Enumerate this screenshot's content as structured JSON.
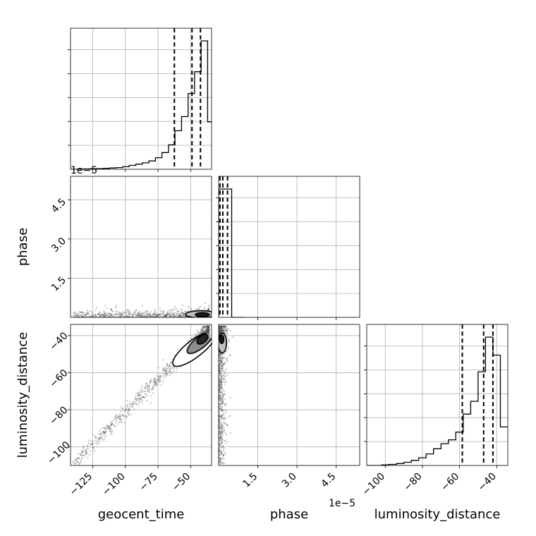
{
  "chart_data": {
    "type": "corner",
    "parameters": [
      "geocent_time",
      "phase",
      "luminosity_distance"
    ],
    "axis_labels": {
      "geocent_time": "geocent_time",
      "phase": "phase",
      "luminosity_distance": "luminosity_distance"
    },
    "offset_texts": {
      "phase_y": "1e−5",
      "phase_x": "1e−5"
    },
    "ranges": {
      "geocent_time": [
        -142,
        -34
      ],
      "phase": [
        0,
        5.4e-05
      ],
      "luminosity_distance": [
        -110,
        -34
      ]
    },
    "ticks": {
      "geocent_time": [
        {
          "value": -125,
          "label": "−125"
        },
        {
          "value": -100,
          "label": "−100"
        },
        {
          "value": -75,
          "label": "−75"
        },
        {
          "value": -50,
          "label": "−50"
        }
      ],
      "phase": [
        {
          "value": 1.5e-05,
          "label": "1.5"
        },
        {
          "value": 3e-05,
          "label": "3.0"
        },
        {
          "value": 4.5e-05,
          "label": "4.5"
        }
      ],
      "luminosity_distance": [
        {
          "value": -100,
          "label": "−100"
        },
        {
          "value": -80,
          "label": "−80"
        },
        {
          "value": -60,
          "label": "−60"
        },
        {
          "value": -40,
          "label": "−40"
        }
      ]
    },
    "histograms": {
      "geocent_time": {
        "edges": [
          -142,
          -137,
          -132,
          -127,
          -122,
          -117,
          -112,
          -107,
          -102,
          -97,
          -92,
          -87,
          -82,
          -77,
          -72,
          -67,
          -62,
          -57,
          -52,
          -47,
          -42,
          -37,
          -34
        ],
        "counts": [
          0,
          0.2,
          0.3,
          0.4,
          0.5,
          0.7,
          1,
          1.3,
          2,
          3,
          4,
          5,
          6.5,
          9,
          13,
          19,
          30,
          41,
          59,
          76,
          100,
          37
        ]
      },
      "phase": {
        "edges": [
          0,
          5e-06,
          1e-05
        ],
        "counts": [
          100,
          0
        ]
      },
      "luminosity_distance": {
        "edges": [
          -110,
          -106,
          -102,
          -98,
          -94,
          -90,
          -86,
          -82,
          -78,
          -74,
          -70,
          -66,
          -62,
          -58,
          -54,
          -50,
          -46,
          -42,
          -38,
          -34
        ],
        "counts": [
          0,
          0,
          0.5,
          0.8,
          1.5,
          2.5,
          4,
          6,
          9,
          13,
          17,
          20,
          26,
          40,
          50,
          73,
          100,
          86,
          30
        ]
      }
    },
    "quantiles": {
      "geocent_time": [
        -62.5,
        -49,
        -42.5
      ],
      "phase": [
        5e-07,
        1.6e-06,
        3.4e-06
      ],
      "luminosity_distance": [
        -58.5,
        -47,
        -42
      ]
    },
    "scatter": {
      "count": 900,
      "correlation_time_distance": "strong positive, near-linear",
      "phase_concentration": "near zero"
    },
    "grid": true
  }
}
